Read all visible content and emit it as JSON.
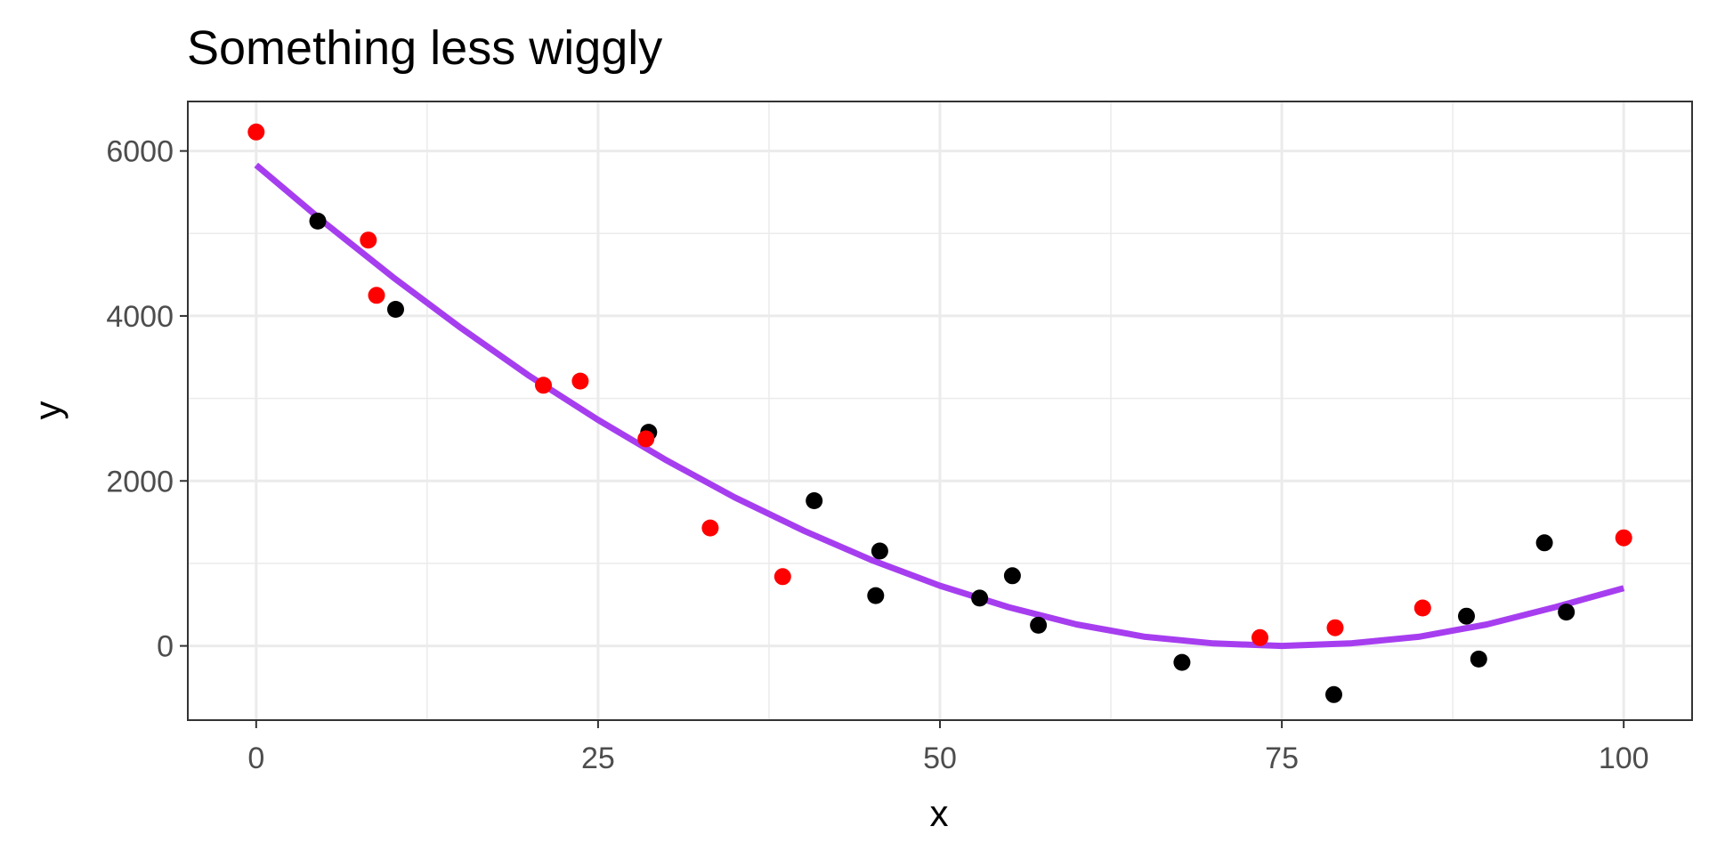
{
  "chart_data": {
    "type": "scatter",
    "title": "Something less wiggly",
    "xlabel": "x",
    "ylabel": "y",
    "xlim": [
      -5,
      105
    ],
    "ylim": [
      -900,
      6600
    ],
    "x_ticks": [
      0,
      25,
      50,
      75,
      100
    ],
    "y_ticks": [
      0,
      2000,
      4000,
      6000
    ],
    "x_tick_labels": [
      "0",
      "25",
      "50",
      "75",
      "100"
    ],
    "y_tick_labels": [
      "0",
      "2000",
      "4000",
      "6000"
    ],
    "grid": true,
    "legend": "none",
    "colors": {
      "series_a": "#000000",
      "series_b": "#ff0000",
      "fit": "#a63ef0",
      "grid": "#ebebeb",
      "panel_border": "#333333",
      "tick_text": "#4d4d4d"
    },
    "series": [
      {
        "color": "black",
        "points": [
          [
            4.5,
            5150
          ],
          [
            10.2,
            4080
          ],
          [
            28.7,
            2590
          ],
          [
            40.8,
            1760
          ],
          [
            45.3,
            610
          ],
          [
            45.6,
            1150
          ],
          [
            52.9,
            580
          ],
          [
            55.3,
            850
          ],
          [
            57.2,
            250
          ],
          [
            67.7,
            -200
          ],
          [
            78.8,
            -590
          ],
          [
            88.5,
            360
          ],
          [
            89.4,
            -160
          ],
          [
            94.2,
            1250
          ],
          [
            95.8,
            410
          ]
        ]
      },
      {
        "color": "red",
        "points": [
          [
            0.0,
            6230
          ],
          [
            8.2,
            4920
          ],
          [
            8.8,
            4250
          ],
          [
            21.0,
            3160
          ],
          [
            23.7,
            3210
          ],
          [
            28.5,
            2510
          ],
          [
            33.2,
            1430
          ],
          [
            38.5,
            840
          ],
          [
            73.4,
            100
          ],
          [
            78.9,
            220
          ],
          [
            85.3,
            460
          ],
          [
            100.0,
            1310
          ]
        ]
      },
      {
        "color": "fit",
        "type": "line",
        "x": [
          0,
          5,
          10,
          15,
          20,
          25,
          30,
          35,
          40,
          45,
          50,
          55,
          60,
          65,
          70,
          75,
          80,
          85,
          90,
          95,
          100
        ],
        "values": [
          5830,
          5130,
          4470,
          3850,
          3270,
          2740,
          2250,
          1800,
          1400,
          1040,
          730,
          470,
          260,
          110,
          30,
          0,
          30,
          110,
          260,
          470,
          700
        ]
      }
    ]
  }
}
